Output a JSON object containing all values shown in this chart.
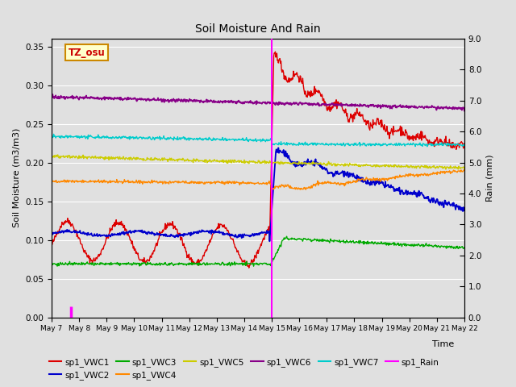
{
  "title": "Soil Moisture And Rain",
  "xlabel": "Time",
  "ylabel_left": "Soil Moisture (m3/m3)",
  "ylabel_right": "Rain (mm)",
  "ylim_left": [
    0,
    0.36
  ],
  "ylim_right": [
    0,
    9.0
  ],
  "yticks_left": [
    0.0,
    0.05,
    0.1,
    0.15,
    0.2,
    0.25,
    0.3,
    0.35
  ],
  "yticks_right": [
    0.0,
    1.0,
    2.0,
    3.0,
    4.0,
    5.0,
    6.0,
    7.0,
    8.0,
    9.0
  ],
  "background_color": "#e0e0e0",
  "plot_bg_color": "#e0e0e0",
  "annotation_box": {
    "text": "TZ_osu",
    "facecolor": "#ffffcc",
    "edgecolor": "#cc8800"
  },
  "colors": {
    "VWC1": "#dd0000",
    "VWC2": "#0000cc",
    "VWC3": "#00aa00",
    "VWC4": "#ff8800",
    "VWC5": "#cccc00",
    "VWC6": "#880088",
    "VWC7": "#00cccc",
    "Rain": "#ff00ff"
  },
  "n_points": 800,
  "day_start": 7,
  "day_end": 22
}
